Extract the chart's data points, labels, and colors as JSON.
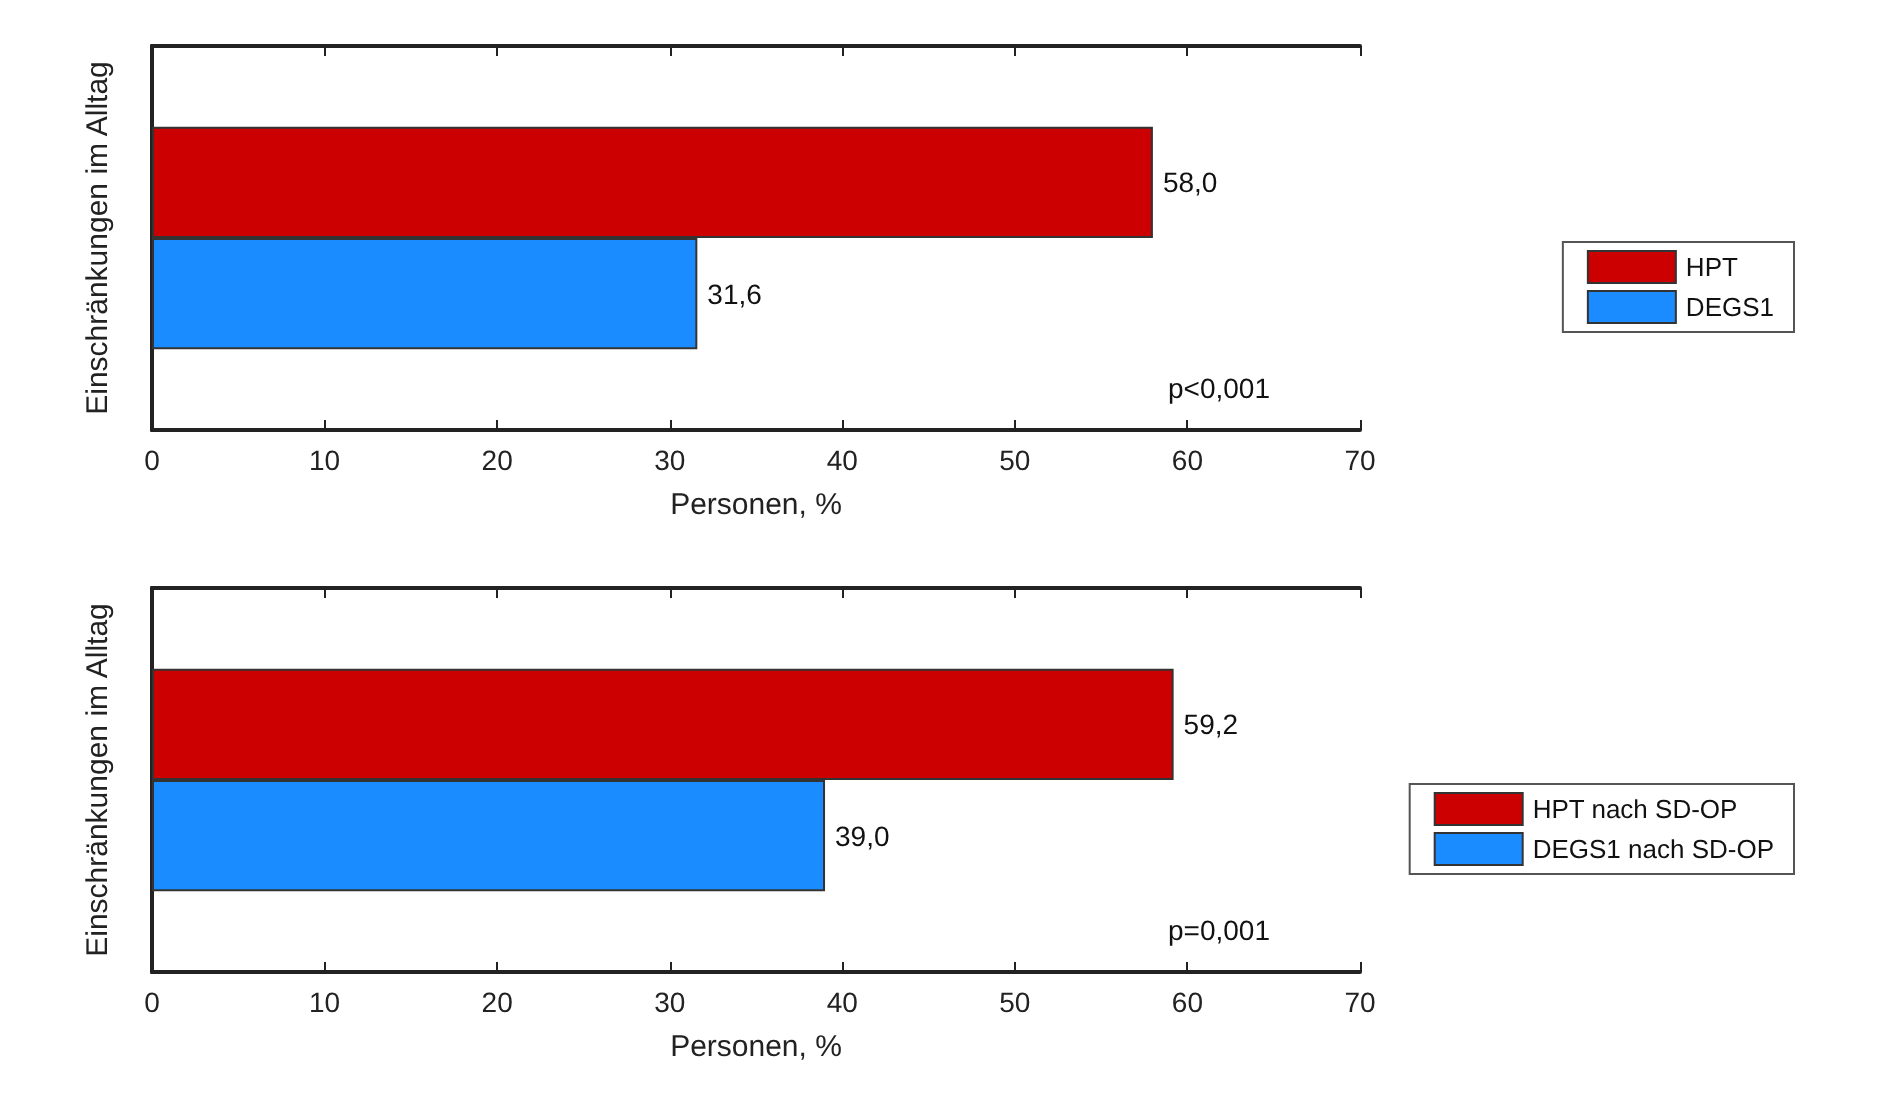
{
  "chart_data": [
    {
      "type": "bar",
      "orientation": "horizontal",
      "categories": [
        null
      ],
      "ylabel": "Einschränkungen im Alltag",
      "xlabel": "Personen, %",
      "xlim": [
        0,
        70
      ],
      "xticks": [
        0,
        10,
        20,
        30,
        40,
        50,
        60,
        70
      ],
      "tick_labels": "x",
      "grid": false,
      "legend": "right",
      "annotations": [
        "p<0,001"
      ],
      "series": [
        {
          "name": "HPT",
          "color": "#cc0000",
          "values": [
            58.0
          ],
          "value_labels": [
            "58,0"
          ]
        },
        {
          "name": "DEGS1",
          "color": "#1a8cff",
          "values": [
            31.6
          ],
          "value_labels": [
            "31,6"
          ]
        }
      ]
    },
    {
      "type": "bar",
      "orientation": "horizontal",
      "categories": [
        null
      ],
      "ylabel": "Einschränkungen im Alltag",
      "xlabel": "Personen, %",
      "xlim": [
        0,
        70
      ],
      "xticks": [
        0,
        10,
        20,
        30,
        40,
        50,
        60,
        70
      ],
      "tick_labels": "x",
      "grid": false,
      "legend": "right",
      "annotations": [
        "p=0,001"
      ],
      "series": [
        {
          "name": "HPT nach SD-OP",
          "color": "#cc0000",
          "values": [
            59.2
          ],
          "value_labels": [
            "59,2"
          ]
        },
        {
          "name": "DEGS1 nach SD-OP",
          "color": "#1a8cff",
          "values": [
            39.0
          ],
          "value_labels": [
            "39,0"
          ]
        }
      ]
    }
  ]
}
